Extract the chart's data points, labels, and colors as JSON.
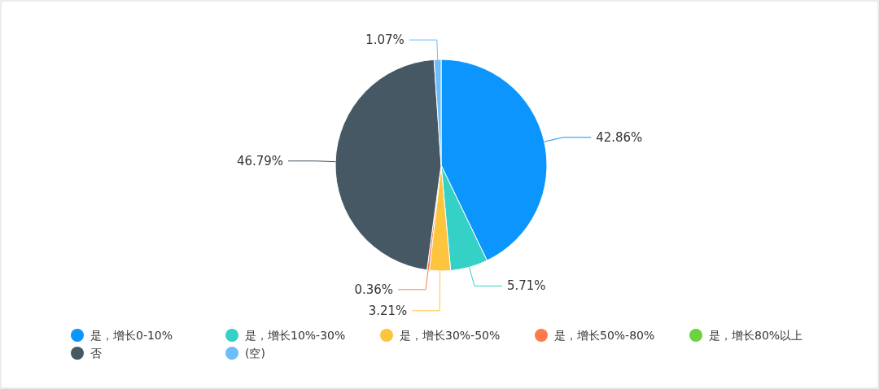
{
  "chart_data": {
    "type": "pie",
    "categories": [
      "是，增长0-10%",
      "是，增长10%-30%",
      "是，增长30%-50%",
      "是，增长50%-80%",
      "是，增长80%以上",
      "否",
      "(空)"
    ],
    "values": [
      42.86,
      5.71,
      3.21,
      0.36,
      0,
      46.79,
      1.07
    ],
    "colors": [
      "#0b95fd",
      "#35d0c6",
      "#fdc43d",
      "#fd7a4a",
      "#6dd23f",
      "#465864",
      "#6cbdfb"
    ],
    "value_labels": [
      "42.86%",
      "5.71%",
      "3.21%",
      "0.36%",
      null,
      "46.79%",
      "1.07%"
    ],
    "legend": "bottom"
  }
}
